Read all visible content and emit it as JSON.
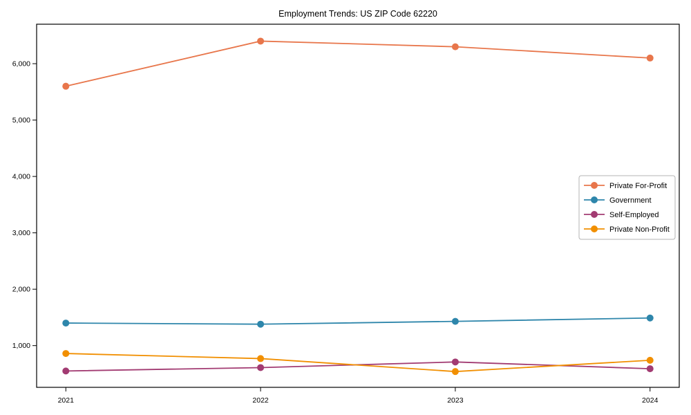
{
  "title": "Employment Trends: US ZIP Code 62220",
  "chart_data": {
    "type": "line",
    "title": "Employment Trends: US ZIP Code 62220",
    "xlabel": "",
    "ylabel": "",
    "x": [
      2021,
      2022,
      2023,
      2024
    ],
    "x_tick_labels": [
      "2021",
      "2022",
      "2023",
      "2024"
    ],
    "yticks": [
      1000,
      2000,
      3000,
      4000,
      5000,
      6000
    ],
    "ytick_labels": [
      "1,000",
      "2,000",
      "3,000",
      "4,000",
      "5,000",
      "6,000"
    ],
    "xlim": [
      2020.85,
      2024.15
    ],
    "ylim": [
      260,
      6700
    ],
    "grid": false,
    "legend_position": "center right",
    "marker": "circle",
    "background_color": "#ffffff",
    "axis_color": "#000000",
    "legend_border_color": "#b3b3b3",
    "series": [
      {
        "name": "Private For-Profit",
        "color": "#E8764B",
        "values": [
          5600,
          6400,
          6300,
          6100
        ]
      },
      {
        "name": "Government",
        "color": "#2E86AB",
        "values": [
          1400,
          1380,
          1430,
          1490
        ]
      },
      {
        "name": "Self-Employed",
        "color": "#A23B72",
        "values": [
          550,
          610,
          710,
          590
        ]
      },
      {
        "name": "Private Non-Profit",
        "color": "#F18F01",
        "values": [
          860,
          770,
          540,
          740
        ]
      }
    ]
  }
}
